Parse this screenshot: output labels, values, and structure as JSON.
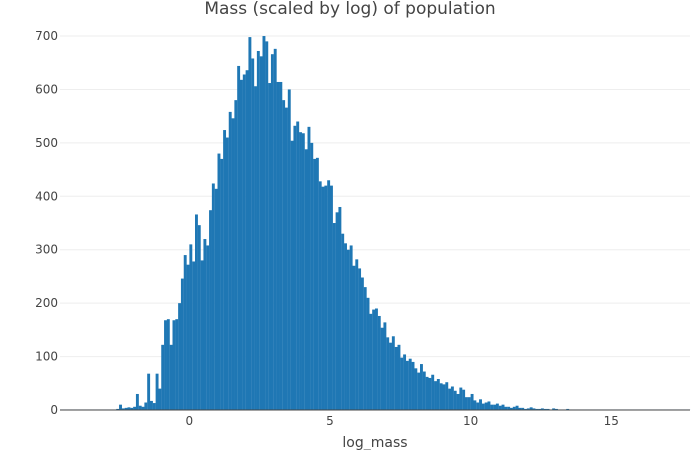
{
  "chart_data": {
    "type": "bar",
    "title": "Mass (scaled by log) of population",
    "xlabel": "log_mass",
    "ylabel": "",
    "xlim": [
      -4.6,
      17.8
    ],
    "ylim": [
      0,
      730
    ],
    "bin_start": -4.6,
    "bin_width": 0.1,
    "x_ticks": [
      0,
      5,
      10,
      15
    ],
    "x_tick_labels": [
      "0",
      "5",
      "10",
      "15"
    ],
    "y_ticks": [
      0,
      100,
      200,
      300,
      400,
      500,
      600,
      700
    ],
    "y_tick_labels": [
      "0",
      "100",
      "200",
      "300",
      "400",
      "500",
      "600",
      "700"
    ],
    "grid": "y",
    "legend": "none",
    "bar_color": "#1f77b4",
    "values": [
      1,
      1,
      1,
      1,
      1,
      1,
      1,
      1,
      1,
      1,
      1,
      1,
      1,
      1,
      1,
      1,
      1,
      1,
      1,
      1,
      2,
      10,
      3,
      4,
      5,
      4,
      6,
      30,
      8,
      6,
      14,
      68,
      17,
      13,
      68,
      40,
      122,
      168,
      170,
      122,
      168,
      170,
      200,
      246,
      290,
      272,
      310,
      278,
      366,
      346,
      280,
      320,
      308,
      374,
      424,
      414,
      480,
      470,
      524,
      510,
      558,
      546,
      580,
      644,
      618,
      628,
      636,
      698,
      658,
      606,
      672,
      662,
      700,
      690,
      612,
      666,
      676,
      614,
      614,
      580,
      566,
      600,
      504,
      532,
      540,
      520,
      518,
      488,
      530,
      500,
      470,
      472,
      428,
      418,
      420,
      430,
      420,
      350,
      370,
      380,
      330,
      312,
      300,
      308,
      270,
      282,
      265,
      248,
      230,
      210,
      180,
      188,
      190,
      176,
      154,
      164,
      136,
      126,
      138,
      118,
      122,
      98,
      104,
      92,
      96,
      90,
      78,
      70,
      86,
      72,
      62,
      60,
      66,
      54,
      58,
      50,
      48,
      52,
      40,
      44,
      36,
      30,
      42,
      38,
      24,
      24,
      30,
      18,
      14,
      20,
      12,
      14,
      16,
      10,
      10,
      12,
      8,
      10,
      6,
      6,
      4,
      6,
      8,
      4,
      4,
      2,
      3,
      5,
      3,
      2,
      2,
      3,
      2,
      2,
      1,
      3,
      2,
      1,
      1,
      1,
      2,
      1,
      1,
      1,
      1,
      1,
      1,
      1,
      1,
      1,
      1,
      1,
      1,
      1,
      1,
      1,
      1,
      1,
      1,
      1,
      1,
      1,
      1,
      1,
      1,
      1,
      1,
      1,
      1,
      1,
      1,
      1,
      1,
      1,
      1,
      1,
      1,
      1,
      1,
      1,
      1,
      1,
      1,
      1,
      1,
      1,
      1,
      1,
      1,
      1,
      1,
      1,
      1,
      1
    ]
  }
}
